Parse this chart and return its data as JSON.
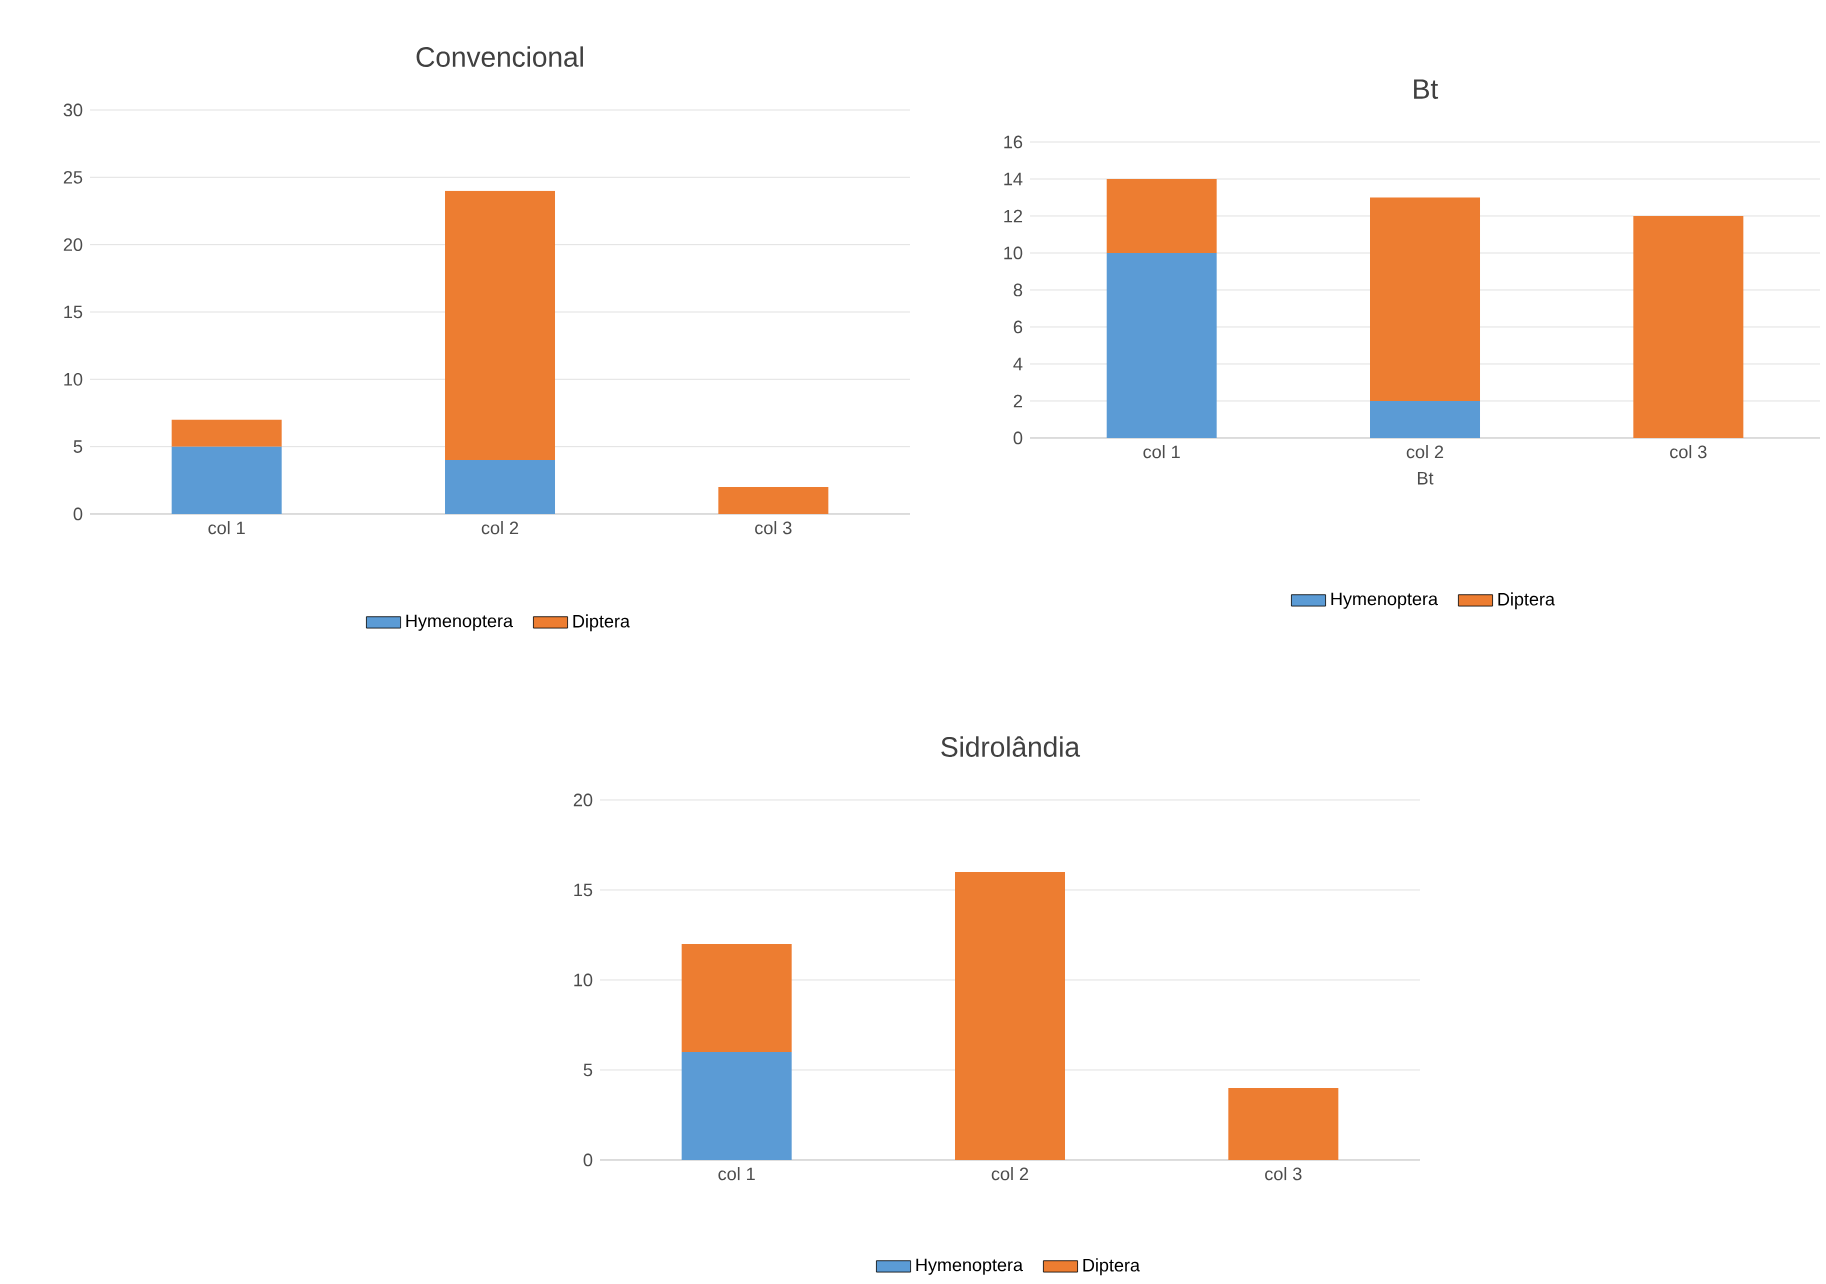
{
  "chart_data": [
    {
      "type": "bar",
      "title": "Convencional",
      "stacked": true,
      "categories": [
        "col 1",
        "col 2",
        "col 3"
      ],
      "series": [
        {
          "name": "Hymenoptera",
          "color": "#5b9bd5",
          "values": [
            5,
            4,
            0
          ]
        },
        {
          "name": "Diptera",
          "color": "#ed7d31",
          "values": [
            2,
            20,
            2
          ]
        }
      ],
      "ylim": [
        0,
        30
      ],
      "yticks": [
        0,
        5,
        10,
        15,
        20,
        25,
        30
      ],
      "grid": "y",
      "legend": "bottom"
    },
    {
      "type": "bar",
      "title": "Bt",
      "xlabel": "Bt",
      "stacked": true,
      "categories": [
        "col 1",
        "col 2",
        "col 3"
      ],
      "series": [
        {
          "name": "Hymenoptera",
          "color": "#5b9bd5",
          "values": [
            10,
            2,
            0
          ]
        },
        {
          "name": "Diptera",
          "color": "#ed7d31",
          "values": [
            4,
            11,
            12
          ]
        }
      ],
      "ylim": [
        0,
        16
      ],
      "yticks": [
        0,
        2,
        4,
        6,
        8,
        10,
        12,
        14,
        16
      ],
      "grid": "y",
      "legend": "bottom"
    },
    {
      "type": "bar",
      "title": "Sidrolândia",
      "stacked": true,
      "categories": [
        "col 1",
        "col 2",
        "col 3"
      ],
      "series": [
        {
          "name": "Hymenoptera",
          "color": "#5b9bd5",
          "values": [
            6,
            0,
            0
          ]
        },
        {
          "name": "Diptera",
          "color": "#ed7d31",
          "values": [
            6,
            16,
            4
          ]
        }
      ],
      "ylim": [
        0,
        20
      ],
      "yticks": [
        0,
        5,
        10,
        15,
        20
      ],
      "grid": "y",
      "legend": "bottom"
    }
  ]
}
